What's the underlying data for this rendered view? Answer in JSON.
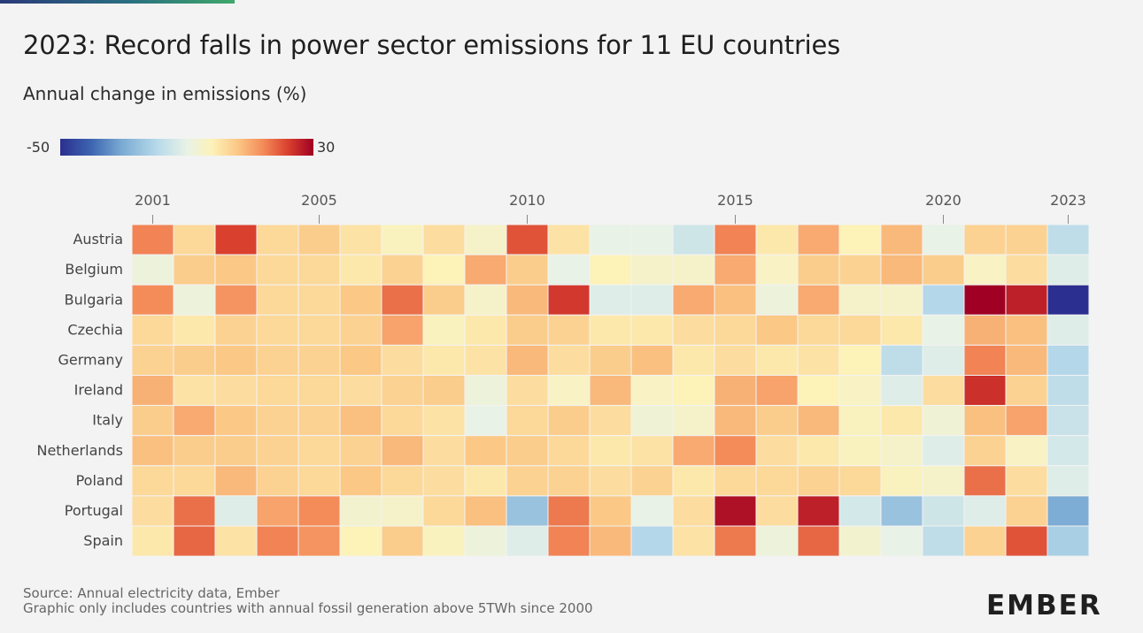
{
  "header": {
    "title": "2023: Record falls in power sector emissions for 11 EU countries",
    "subtitle": "Annual change in emissions (%)"
  },
  "legend": {
    "min_label": "-50",
    "max_label": "30"
  },
  "footer": {
    "source": "Source: Annual electricity data, Ember",
    "note": "Graphic only includes countries with annual fossil generation above 5TWh since 2000"
  },
  "brand": {
    "logo_text": "EMBER",
    "accent_color": "#3ea86a"
  },
  "chart_data": {
    "type": "heatmap",
    "title": "2023: Record falls in power sector emissions for 11 EU countries",
    "subtitle": "Annual change in emissions (%)",
    "color_scale": {
      "min": -50,
      "max": 30
    },
    "x_tick_labels": [
      "2001",
      "2005",
      "2010",
      "2015",
      "2020",
      "2023"
    ],
    "x": [
      2001,
      2002,
      2003,
      2004,
      2005,
      2006,
      2007,
      2008,
      2009,
      2010,
      2011,
      2012,
      2013,
      2014,
      2015,
      2016,
      2017,
      2018,
      2019,
      2020,
      2021,
      2022,
      2023
    ],
    "y": [
      "Austria",
      "Belgium",
      "Bulgaria",
      "Czechia",
      "Germany",
      "Ireland",
      "Italy",
      "Netherlands",
      "Poland",
      "Portugal",
      "Spain"
    ],
    "values": [
      [
        15,
        3,
        22,
        3,
        5,
        1,
        -3,
        2,
        -5,
        20,
        1,
        -10,
        -10,
        -15,
        15,
        0,
        10,
        -2,
        8,
        -10,
        4,
        4,
        -18
      ],
      [
        -8,
        5,
        6,
        3,
        3,
        0,
        4,
        -2,
        10,
        5,
        -10,
        -2,
        -5,
        -5,
        10,
        -4,
        5,
        4,
        8,
        5,
        -4,
        2,
        -12
      ],
      [
        14,
        -8,
        13,
        3,
        3,
        6,
        17,
        5,
        -5,
        8,
        23,
        -12,
        -12,
        10,
        7,
        -8,
        10,
        -5,
        -5,
        -20,
        30,
        26,
        -50
      ],
      [
        3,
        0,
        4,
        3,
        3,
        4,
        11,
        -3,
        0,
        5,
        4,
        0,
        0,
        2,
        3,
        6,
        3,
        3,
        0,
        -10,
        9,
        7,
        -12
      ],
      [
        4,
        5,
        6,
        4,
        4,
        6,
        2,
        0,
        1,
        8,
        2,
        5,
        7,
        0,
        2,
        0,
        1,
        -2,
        -18,
        -12,
        15,
        8,
        -20
      ],
      [
        9,
        1,
        2,
        3,
        3,
        2,
        4,
        5,
        -8,
        2,
        -4,
        8,
        -4,
        -2,
        9,
        11,
        -2,
        -4,
        -12,
        2,
        24,
        4,
        -18
      ],
      [
        5,
        10,
        6,
        4,
        4,
        7,
        3,
        1,
        -10,
        3,
        5,
        2,
        -7,
        -5,
        8,
        5,
        8,
        -3,
        0,
        -7,
        7,
        11,
        -16
      ],
      [
        7,
        5,
        5,
        4,
        3,
        4,
        8,
        2,
        6,
        5,
        3,
        0,
        1,
        10,
        14,
        2,
        0,
        -3,
        -5,
        -12,
        4,
        -4,
        -14
      ],
      [
        3,
        3,
        8,
        4,
        3,
        6,
        3,
        2,
        0,
        4,
        4,
        2,
        4,
        0,
        3,
        3,
        4,
        3,
        -3,
        -5,
        17,
        2,
        -12
      ],
      [
        2,
        17,
        -12,
        11,
        14,
        -6,
        -5,
        3,
        7,
        -25,
        16,
        6,
        -10,
        2,
        28,
        2,
        26,
        -14,
        -25,
        -15,
        -12,
        4,
        -30
      ],
      [
        0,
        18,
        1,
        15,
        13,
        -2,
        5,
        -3,
        -8,
        -12,
        15,
        8,
        -20,
        1,
        16,
        -8,
        18,
        -6,
        -10,
        -18,
        4,
        20,
        -22
      ]
    ]
  }
}
